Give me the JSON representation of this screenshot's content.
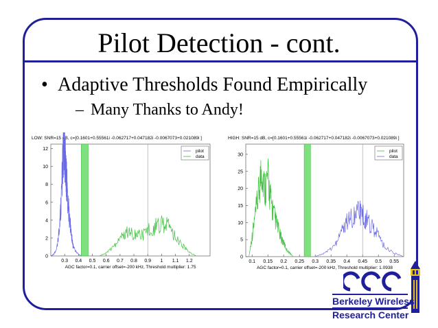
{
  "slide": {
    "title": "Pilot Detection - cont.",
    "bullet": "Adaptive Thresholds Found Empirically",
    "bullet_marker": "•",
    "subbullet": "Many Thanks to Andy!",
    "subbullet_marker": "–"
  },
  "logo": {
    "line1": "Berkeley Wireless",
    "line2": "Research Center"
  },
  "chart_data": [
    {
      "type": "line",
      "title": "LOW: SNR=15 dB,  c=[0.1601+0.55561i     -0.062717+0.047182i     -0.0067073+0.021089i   ]",
      "xlabel": "AGC factor=0.1, carrier offset=-200 kHz, Threshold multiplier: 1.75",
      "ylabel": "",
      "xticks": [
        "0.3",
        "0.4",
        "0.5",
        "0.6",
        "0.7",
        "0.8",
        "0.9",
        "1",
        "1.1",
        "1.2"
      ],
      "yticks": [
        "0",
        "2",
        "4",
        "6",
        "8",
        "10",
        "12"
      ],
      "xlim": [
        0.2,
        1.35
      ],
      "ylim": [
        0,
        12.5
      ],
      "legend": [
        "pilot",
        "data"
      ],
      "legend_position": "top-right",
      "threshold_band": [
        0.42,
        0.47
      ],
      "vertical_marker": 0.9,
      "series": [
        {
          "name": "pilot",
          "color": "#6a6ae6",
          "x": [
            0.2,
            0.22,
            0.24,
            0.25,
            0.26,
            0.27,
            0.28,
            0.285,
            0.29,
            0.295,
            0.3,
            0.305,
            0.31,
            0.315,
            0.32,
            0.33,
            0.34,
            0.35,
            0.36,
            0.38,
            0.4,
            0.42
          ],
          "y": [
            0,
            0.2,
            0.6,
            1.5,
            3,
            5,
            8,
            10,
            12,
            11.5,
            12.3,
            10.5,
            9,
            8.5,
            7,
            5,
            3.5,
            2.2,
            1.2,
            0.5,
            0.2,
            0
          ]
        },
        {
          "name": "data",
          "color": "#3fbf3f",
          "x": [
            0.55,
            0.6,
            0.65,
            0.7,
            0.75,
            0.8,
            0.85,
            0.9,
            0.95,
            1.0,
            1.05,
            1.1,
            1.15,
            1.2,
            1.25
          ],
          "y": [
            0,
            0.3,
            1,
            2,
            2.6,
            2.5,
            2.2,
            2.8,
            3.2,
            3.7,
            3.3,
            2.2,
            1.2,
            0.4,
            0
          ]
        }
      ]
    },
    {
      "type": "line",
      "title": "HIGH: SNR=15 dB,  c=[0.1601+0.55561i     -0.062717+0.047182i     -0.0067073+0.021089i   ]",
      "xlabel": "AGC factor=0.1, carrier offset=-200 kHz, Threshold multiplier: 1.0938",
      "ylabel": "",
      "xticks": [
        "0.1",
        "0.15",
        "0.2",
        "0.25",
        "0.3",
        "0.35",
        "0.4",
        "0.45",
        "0.5",
        "0.55"
      ],
      "yticks": [
        "0",
        "5",
        "10",
        "15",
        "20",
        "25",
        "30"
      ],
      "xlim": [
        0.08,
        0.58
      ],
      "ylim": [
        0,
        33
      ],
      "legend": [
        "pilot",
        "data"
      ],
      "legend_position": "top-right",
      "threshold_band": [
        0.265,
        0.285
      ],
      "vertical_marker": 0.45,
      "series": [
        {
          "name": "pilot",
          "color": "#3fbf3f",
          "x": [
            0.09,
            0.1,
            0.11,
            0.12,
            0.13,
            0.14,
            0.15,
            0.16,
            0.17,
            0.18,
            0.19,
            0.2,
            0.21,
            0.22,
            0.23
          ],
          "y": [
            0,
            6,
            12,
            18,
            26,
            20,
            23,
            16,
            12,
            9,
            6,
            4,
            2,
            1,
            0
          ]
        },
        {
          "name": "data",
          "color": "#6a6ae6",
          "x": [
            0.3,
            0.33,
            0.36,
            0.38,
            0.4,
            0.42,
            0.44,
            0.45,
            0.46,
            0.48,
            0.5,
            0.52,
            0.55,
            0.58
          ],
          "y": [
            0,
            1,
            3,
            7,
            10,
            12,
            13,
            12,
            11,
            9,
            6,
            3,
            1,
            0
          ]
        }
      ]
    }
  ]
}
